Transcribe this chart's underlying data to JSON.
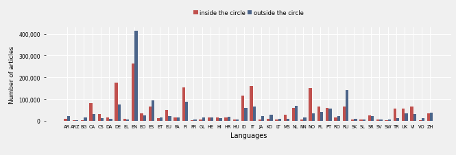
{
  "languages": [
    "AR",
    "ARZ",
    "BG",
    "CA",
    "CS",
    "DA",
    "DE",
    "EL",
    "EN",
    "EO",
    "ES",
    "ET",
    "EU",
    "FA",
    "FI",
    "FR",
    "GL",
    "HE",
    "HI",
    "HR",
    "HU",
    "ID",
    "IT",
    "JA",
    "KO",
    "LT",
    "MS",
    "NL",
    "NN",
    "NO",
    "PL",
    "PT",
    "RO",
    "RU",
    "SK",
    "SL",
    "SR",
    "SV",
    "SW",
    "TR",
    "UK",
    "VI",
    "VO",
    "ZH"
  ],
  "inside": [
    10000,
    2000,
    4000,
    80000,
    30000,
    15000,
    175000,
    8000,
    262000,
    35000,
    65000,
    12000,
    50000,
    15000,
    155000,
    3000,
    5000,
    15000,
    14000,
    14000,
    5000,
    115000,
    160000,
    5000,
    10000,
    5000,
    28000,
    60000,
    7000,
    150000,
    65000,
    60000,
    15000,
    65000,
    7000,
    5000,
    25000,
    7000,
    3000,
    55000,
    55000,
    65000,
    3000,
    35000
  ],
  "outside": [
    22000,
    3000,
    15000,
    32000,
    12000,
    10000,
    75000,
    7000,
    415000,
    25000,
    95000,
    14000,
    20000,
    15000,
    88000,
    5000,
    14000,
    14000,
    12000,
    18000,
    5000,
    60000,
    65000,
    20000,
    28000,
    8000,
    10000,
    70000,
    14000,
    35000,
    40000,
    55000,
    20000,
    140000,
    10000,
    7000,
    20000,
    7000,
    5000,
    12000,
    35000,
    30000,
    13000,
    38000
  ],
  "inside_color": "#c0504d",
  "outside_color": "#4b6489",
  "xlabel": "Languages",
  "ylabel": "Number of articles",
  "legend_inside": "inside the circle",
  "legend_outside": "outside the circle",
  "ylim": [
    0,
    430000
  ],
  "bg_color": "#f0f0f0",
  "grid_color": "#ffffff"
}
